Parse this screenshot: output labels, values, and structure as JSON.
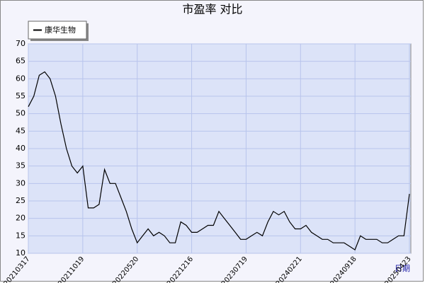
{
  "chart_data": {
    "type": "line",
    "title": "市盈率  对比",
    "x_label": "日期",
    "categories": [
      "20210317",
      null,
      null,
      null,
      null,
      null,
      null,
      null,
      null,
      null,
      "20211019",
      null,
      null,
      null,
      null,
      null,
      null,
      null,
      null,
      null,
      "20220520",
      null,
      null,
      null,
      null,
      null,
      null,
      null,
      null,
      null,
      "20221216",
      null,
      null,
      null,
      null,
      null,
      null,
      null,
      null,
      null,
      "20230719",
      null,
      null,
      null,
      null,
      null,
      null,
      null,
      null,
      null,
      "20240221",
      null,
      null,
      null,
      null,
      null,
      null,
      null,
      null,
      null,
      "20240918",
      null,
      null,
      null,
      null,
      null,
      null,
      null,
      null,
      null,
      "20250423"
    ],
    "series": [
      {
        "name": "康华生物",
        "color": "#000000",
        "values": [
          52,
          55,
          61,
          62,
          60,
          55,
          47,
          40,
          35,
          33,
          35,
          23,
          23,
          24,
          34,
          30,
          30,
          26,
          22,
          17,
          13,
          15,
          17,
          15,
          16,
          15,
          13,
          13,
          19,
          18,
          16,
          16,
          17,
          18,
          18,
          22,
          20,
          18,
          16,
          14,
          14,
          15,
          16,
          15,
          19,
          22,
          21,
          22,
          19,
          17,
          17,
          18,
          16,
          15,
          14,
          14,
          13,
          13,
          13,
          12,
          11,
          15,
          14,
          14,
          14,
          13,
          13,
          14,
          15,
          15,
          27
        ]
      }
    ],
    "ylim": [
      10,
      70
    ],
    "yticks": [
      10,
      15,
      20,
      25,
      30,
      35,
      40,
      45,
      50,
      55,
      60,
      65,
      70
    ],
    "grid": true,
    "legend": "top-left"
  }
}
